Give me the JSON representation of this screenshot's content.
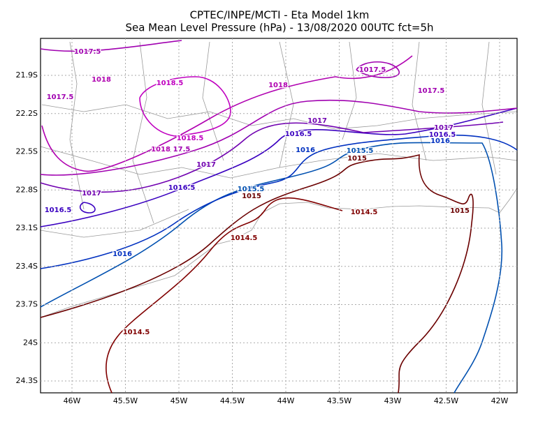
{
  "header": {
    "title": "CPTEC/INPE/MCTI -  Eta Model 1km",
    "subtitle": "Sea Mean Level Pressure (hPa) - 13/08/2020 00UTC fct=5h"
  },
  "axes": {
    "lat": [
      "21.9S",
      "22.2S",
      "22.5S",
      "22.8S",
      "23.1S",
      "23.4S",
      "23.7S",
      "24S",
      "24.3S"
    ],
    "lon": [
      "46W",
      "45.5W",
      "45W",
      "44.5W",
      "44W",
      "43.5W",
      "43W",
      "42.5W",
      "42W"
    ]
  },
  "contour_labels": [
    {
      "text": "1017.5",
      "color": "#a000b0"
    },
    {
      "text": "1018",
      "color": "#b000b0"
    },
    {
      "text": "1018.5",
      "color": "#c000c0"
    },
    {
      "text": "1018",
      "color": "#b000b0"
    },
    {
      "text": "1017.5",
      "color": "#a000b0"
    },
    {
      "text": "1017.5",
      "color": "#a000b0"
    },
    {
      "text": "1017.5",
      "color": "#a000b0"
    },
    {
      "text": "1018.5",
      "color": "#c000c0"
    },
    {
      "text": "1018",
      "color": "#b000b0"
    },
    {
      "text": "17.5",
      "color": "#a000b0"
    },
    {
      "text": "1017",
      "color": "#7000b0"
    },
    {
      "text": "1017",
      "color": "#7000b0"
    },
    {
      "text": "1017",
      "color": "#7000b0"
    },
    {
      "text": "1017",
      "color": "#7000b0"
    },
    {
      "text": "1016.5",
      "color": "#3a00c0"
    },
    {
      "text": "1016.5",
      "color": "#3a00c0"
    },
    {
      "text": "1016.5",
      "color": "#3a00c0"
    },
    {
      "text": "1016.5",
      "color": "#3a00c0"
    },
    {
      "text": "1016",
      "color": "#0030c0"
    },
    {
      "text": "1016",
      "color": "#0030c0"
    },
    {
      "text": "1016",
      "color": "#0030c0"
    },
    {
      "text": "1015.5",
      "color": "#0050b0"
    },
    {
      "text": "1015.5",
      "color": "#0050b0"
    },
    {
      "text": "1015",
      "color": "#6b0000"
    },
    {
      "text": "1015",
      "color": "#6b0000"
    },
    {
      "text": "1015",
      "color": "#6b0000"
    },
    {
      "text": "1014.5",
      "color": "#800000"
    },
    {
      "text": "1014.5",
      "color": "#800000"
    },
    {
      "text": "1014.5",
      "color": "#800000"
    }
  ]
}
